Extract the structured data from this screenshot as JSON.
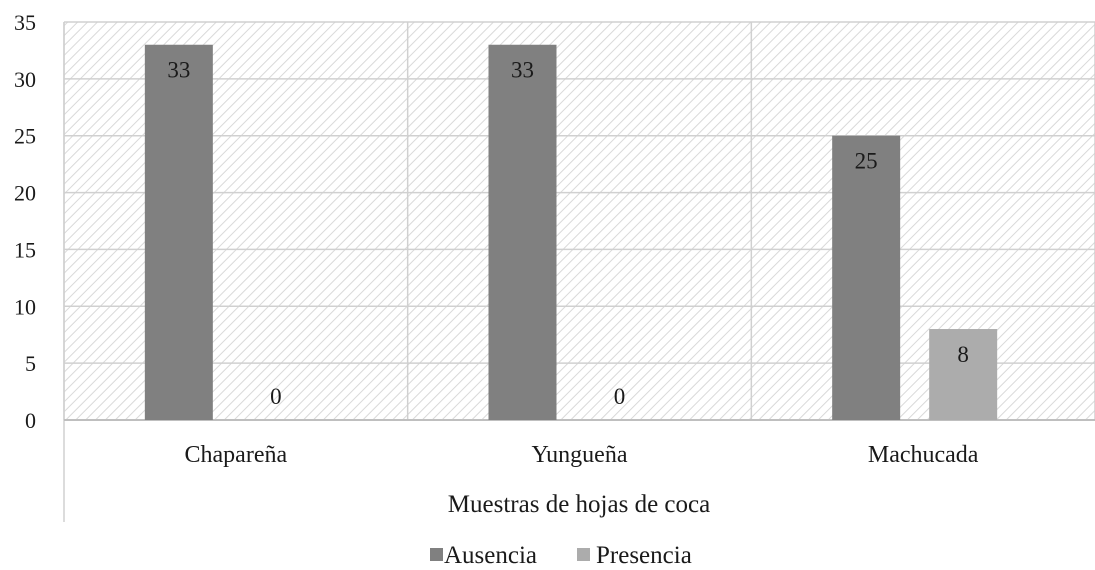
{
  "chart_data": {
    "type": "bar",
    "title": "",
    "xlabel": "Muestras de hojas de coca",
    "ylabel": "",
    "categories": [
      "Chapareña",
      "Yungueña",
      "Machucada"
    ],
    "series": [
      {
        "name": "Ausencia",
        "values": [
          33,
          33,
          25
        ],
        "color": "#808080"
      },
      {
        "name": "Presencia",
        "values": [
          0,
          0,
          8
        ],
        "color": "#acacac"
      }
    ],
    "ylim": [
      0,
      35
    ],
    "yticks": [
      0,
      5,
      10,
      15,
      20,
      25,
      30,
      35
    ],
    "data_labels": true,
    "grid": true,
    "plot_background": "hatched",
    "legend_position": "bottom"
  }
}
